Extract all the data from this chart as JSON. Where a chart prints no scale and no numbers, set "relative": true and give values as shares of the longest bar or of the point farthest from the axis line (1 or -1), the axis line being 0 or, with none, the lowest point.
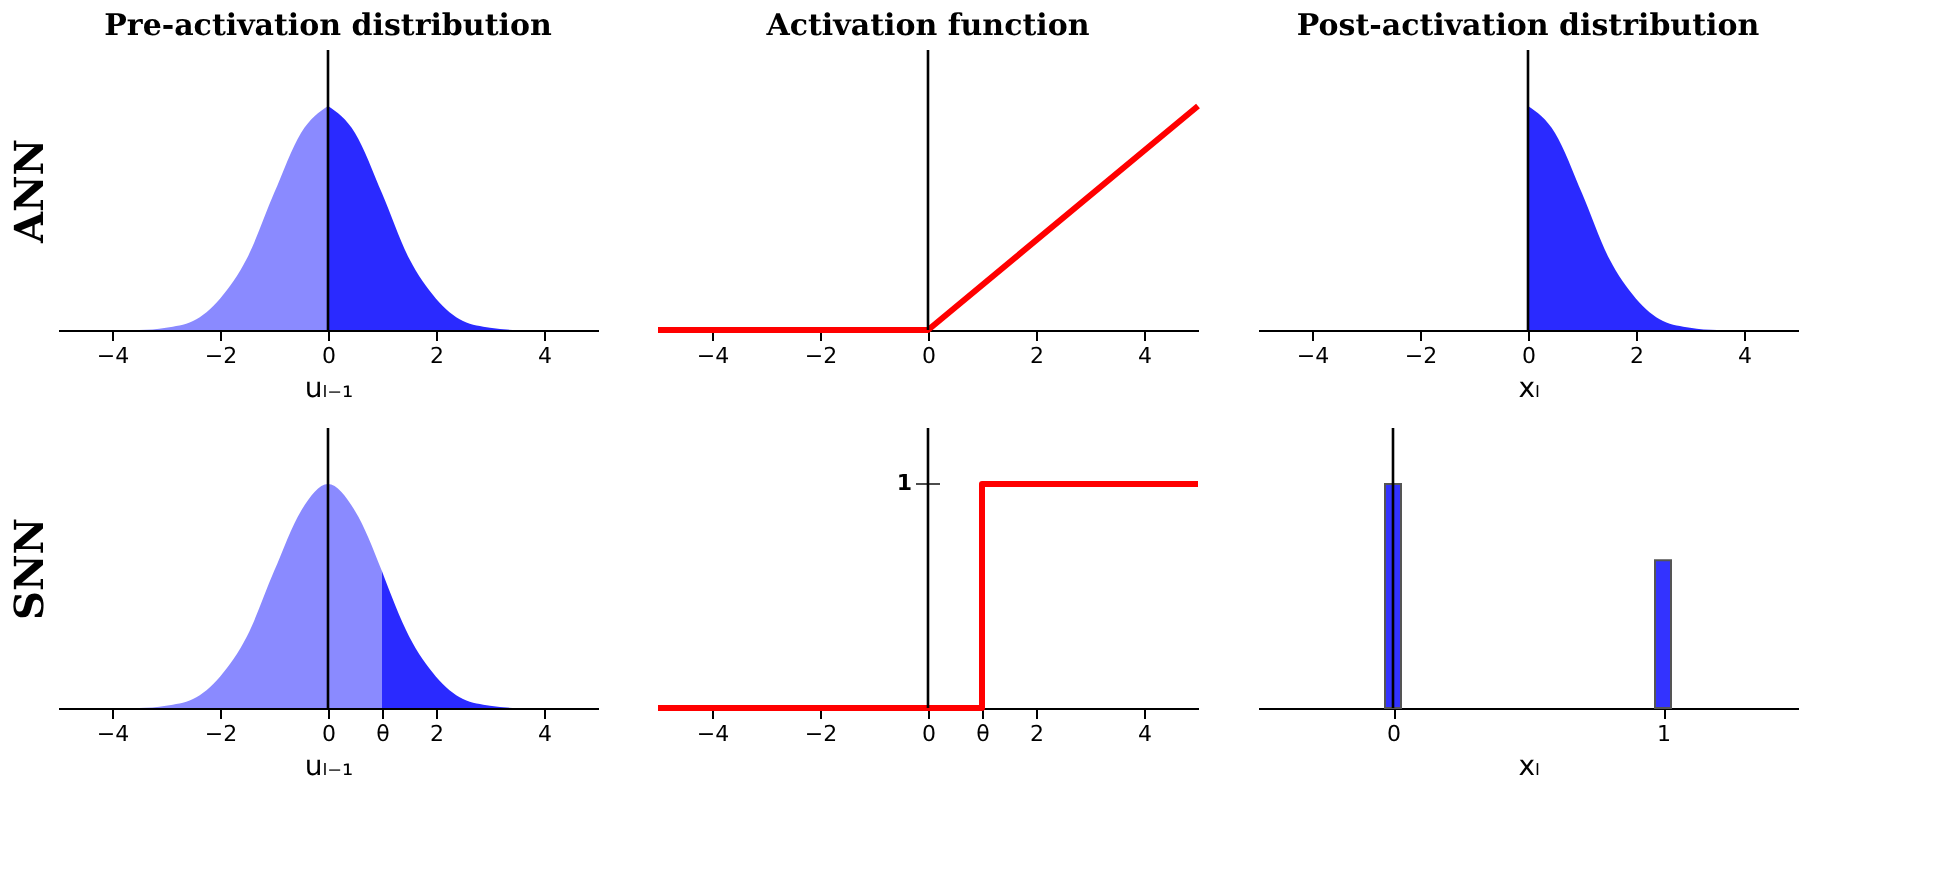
{
  "chart_data": [
    {
      "type": "area",
      "title": "Pre-activation distribution",
      "ylabel": "ANN",
      "xlabel": "uₗ₋₁",
      "relative": true,
      "xlim": [
        -5,
        5
      ],
      "xticks": [
        -4,
        -2,
        0,
        2,
        4
      ],
      "ref_lines": [
        {
          "axis": "x",
          "value": 0
        }
      ],
      "series": [
        {
          "color": "#8a8aff",
          "x": [
            -5,
            -4.5,
            -4,
            -3.5,
            -3,
            -2.5,
            -2,
            -1.5,
            -1,
            -0.5,
            0
          ],
          "values": [
            0,
            0,
            0,
            0,
            0.01,
            0.04,
            0.14,
            0.32,
            0.61,
            0.88,
            1
          ]
        },
        {
          "color": "#2a2aff",
          "x": [
            0,
            0.5,
            1,
            1.5,
            2,
            2.5,
            3,
            3.5,
            4,
            4.5,
            5
          ],
          "values": [
            1,
            0.88,
            0.61,
            0.32,
            0.14,
            0.04,
            0.01,
            0,
            0,
            0,
            0
          ]
        }
      ]
    },
    {
      "type": "line",
      "title": "Activation function",
      "relative": true,
      "xlim": [
        -5,
        5
      ],
      "xticks": [
        -4,
        -2,
        0,
        2,
        4
      ],
      "ref_lines": [
        {
          "axis": "x",
          "value": 0
        }
      ],
      "series": [
        {
          "color": "#ff0000",
          "x": [
            -5,
            0,
            5
          ],
          "values": [
            0,
            0,
            1
          ]
        }
      ]
    },
    {
      "type": "area",
      "title": "Post-activation distribution",
      "xlabel": "xₗ",
      "relative": true,
      "xlim": [
        -5,
        5
      ],
      "xticks": [
        -4,
        -2,
        0,
        2,
        4
      ],
      "ref_lines": [
        {
          "axis": "x",
          "value": 0
        }
      ],
      "series": [
        {
          "color": "#2a2aff",
          "x": [
            0,
            0.5,
            1,
            1.5,
            2,
            2.5,
            3,
            3.5,
            4,
            4.5,
            5
          ],
          "values": [
            1,
            0.88,
            0.61,
            0.32,
            0.14,
            0.04,
            0.01,
            0,
            0,
            0,
            0
          ]
        }
      ]
    },
    {
      "type": "area",
      "ylabel": "SNN",
      "xlabel": "uₗ₋₁",
      "relative": true,
      "xlim": [
        -5,
        5
      ],
      "xticks": [
        -4,
        -2,
        0,
        {
          "value": 1,
          "label": "θ"
        },
        2,
        4
      ],
      "ref_lines": [
        {
          "axis": "x",
          "value": 0
        }
      ],
      "series": [
        {
          "color": "#8a8aff",
          "x": [
            -5,
            -4.5,
            -4,
            -3.5,
            -3,
            -2.5,
            -2,
            -1.5,
            -1,
            -0.5,
            0,
            0.5,
            1
          ],
          "values": [
            0,
            0,
            0,
            0,
            0.01,
            0.04,
            0.14,
            0.32,
            0.61,
            0.88,
            1,
            0.88,
            0.61
          ]
        },
        {
          "color": "#2a2aff",
          "x": [
            1,
            1.5,
            2,
            2.5,
            3,
            3.5,
            4,
            4.5,
            5
          ],
          "values": [
            0.61,
            0.32,
            0.14,
            0.04,
            0.01,
            0,
            0,
            0,
            0
          ]
        }
      ]
    },
    {
      "type": "step",
      "relative": true,
      "xlim": [
        -5,
        5
      ],
      "xticks": [
        -4,
        -2,
        0,
        {
          "value": 1,
          "label": "θ"
        },
        2,
        4
      ],
      "annotations": [
        {
          "text": "1",
          "x": 0,
          "y": 1
        }
      ],
      "ref_lines": [
        {
          "axis": "x",
          "value": 0
        }
      ],
      "series": [
        {
          "color": "#ff0000",
          "x": [
            -5,
            1,
            5
          ],
          "values": [
            0,
            1,
            1
          ]
        }
      ]
    },
    {
      "type": "bar",
      "xlabel": "xₗ",
      "relative": true,
      "xlim": [
        -0.5,
        1.5
      ],
      "xticks": [
        0,
        1
      ],
      "ref_lines": [
        {
          "axis": "x",
          "value": 0
        }
      ],
      "series": [
        {
          "color": "#3333ff",
          "x": [
            0,
            1
          ],
          "values": [
            1,
            0.66
          ]
        }
      ]
    }
  ]
}
